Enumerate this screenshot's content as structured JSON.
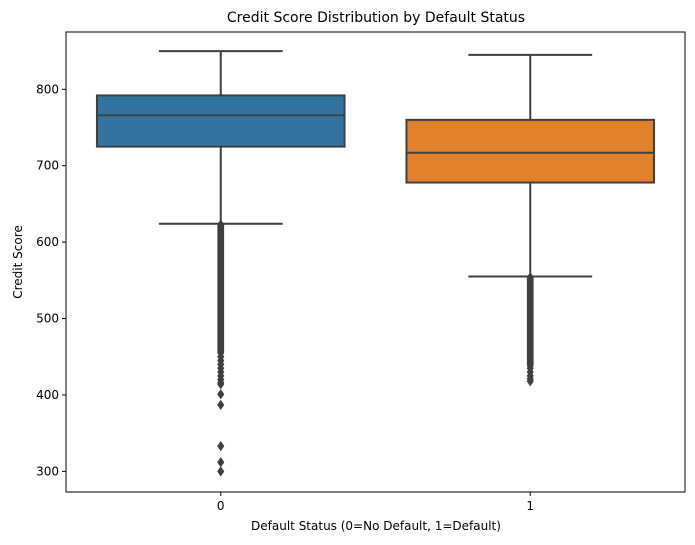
{
  "chart_data": {
    "type": "box",
    "title": "Credit Score Distribution by Default Status",
    "xlabel": "Default Status (0=No Default, 1=Default)",
    "ylabel": "Credit Score",
    "categories": [
      "0",
      "1"
    ],
    "ylim": [
      273,
      875
    ],
    "yticks": [
      300,
      400,
      500,
      600,
      700,
      800
    ],
    "grid": false,
    "legend": "none",
    "boxes": [
      {
        "category": "0",
        "color": "#3274a1",
        "whisker_low": 624,
        "q1": 725,
        "median": 766,
        "q3": 792,
        "whisker_high": 850,
        "outlier_range": [
          455,
          623
        ],
        "outliers": [
          450,
          445,
          440,
          435,
          430,
          425,
          420,
          416,
          414,
          401,
          387,
          333,
          312,
          300
        ]
      },
      {
        "category": "1",
        "color": "#e1812c",
        "whisker_low": 555,
        "q1": 678,
        "median": 717,
        "q3": 760,
        "whisker_high": 845,
        "outlier_range": [
          438,
          554
        ],
        "outliers": [
          435,
          430,
          425,
          421,
          418
        ]
      }
    ]
  }
}
